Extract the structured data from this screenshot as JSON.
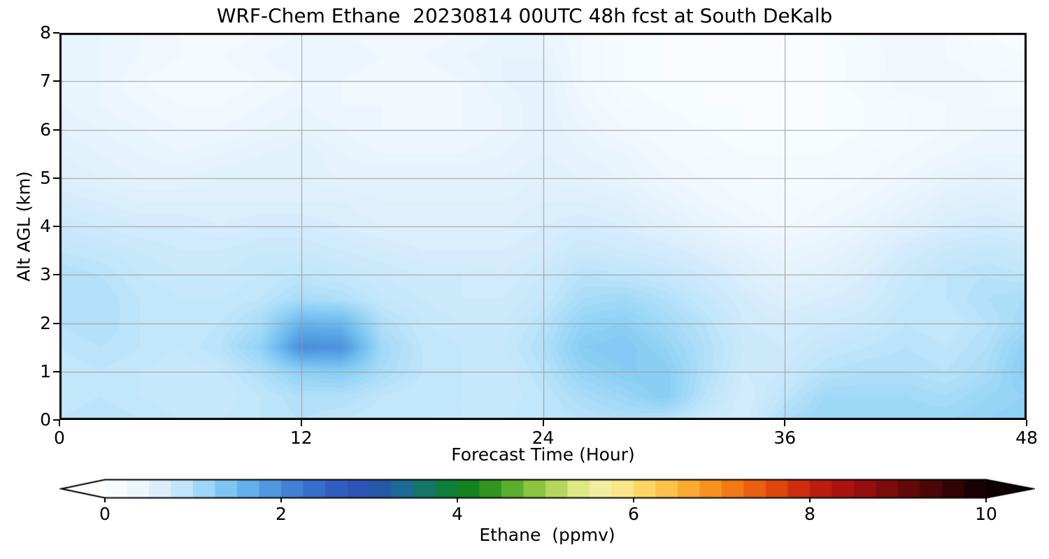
{
  "chart_data": {
    "type": "heatmap",
    "title": "WRF-Chem Ethane  20230814 00UTC 48h fcst at South DeKalb",
    "xlabel": "Forecast Time (Hour)",
    "ylabel": "Alt AGL (km)",
    "xlim": [
      0,
      48
    ],
    "ylim": [
      0,
      8
    ],
    "xticks": [
      0,
      12,
      24,
      36,
      48
    ],
    "yticks": [
      0,
      1,
      2,
      3,
      4,
      5,
      6,
      7,
      8
    ],
    "grid": true,
    "grid_color": "#9c9c9c",
    "contour_interval": 0.05,
    "x_hours": [
      0,
      2,
      4,
      6,
      8,
      10,
      12,
      14,
      16,
      18,
      20,
      22,
      24,
      26,
      28,
      30,
      32,
      34,
      36,
      38,
      40,
      42,
      44,
      46,
      48
    ],
    "y_km": [
      0,
      0.5,
      1,
      1.5,
      2,
      2.5,
      3,
      3.5,
      4,
      4.5,
      5,
      5.5,
      6,
      6.5,
      7,
      7.5,
      8
    ],
    "values_ppmv": [
      [
        0.9,
        0.95,
        0.9,
        0.85,
        0.85,
        0.9,
        0.95,
        0.9,
        0.85,
        0.85,
        0.85,
        0.85,
        0.9,
        0.95,
        1.0,
        0.95,
        0.8,
        0.7,
        1.05,
        1.15,
        1.15,
        1.15,
        1.15,
        1.2,
        1.25
      ],
      [
        0.85,
        0.9,
        0.85,
        0.8,
        0.8,
        0.9,
        1.0,
        1.0,
        0.9,
        0.85,
        0.85,
        0.8,
        0.9,
        1.05,
        1.15,
        1.3,
        0.95,
        0.7,
        0.9,
        1.1,
        1.1,
        1.1,
        1.05,
        1.15,
        1.2
      ],
      [
        0.85,
        0.9,
        0.85,
        0.8,
        0.85,
        1.0,
        1.25,
        1.3,
        1.05,
        0.9,
        0.85,
        0.8,
        0.95,
        1.2,
        1.3,
        1.3,
        1.0,
        0.75,
        0.8,
        0.95,
        1.0,
        1.0,
        0.95,
        1.05,
        1.3
      ],
      [
        0.9,
        0.95,
        0.9,
        0.85,
        0.95,
        1.2,
        2.0,
        1.95,
        1.1,
        0.9,
        0.85,
        0.85,
        1.0,
        1.3,
        1.35,
        1.2,
        1.0,
        0.8,
        0.75,
        0.85,
        0.9,
        0.95,
        0.9,
        1.0,
        1.25
      ],
      [
        0.95,
        1.0,
        0.9,
        0.85,
        0.9,
        1.05,
        1.6,
        1.55,
        1.0,
        0.85,
        0.8,
        0.8,
        0.95,
        1.2,
        1.25,
        1.1,
        0.95,
        0.75,
        0.7,
        0.75,
        0.8,
        0.9,
        0.85,
        0.95,
        1.1
      ],
      [
        1.0,
        1.0,
        0.9,
        0.85,
        0.85,
        0.9,
        1.05,
        1.0,
        0.85,
        0.8,
        0.75,
        0.75,
        0.85,
        1.05,
        1.1,
        1.0,
        0.85,
        0.7,
        0.6,
        0.65,
        0.7,
        0.85,
        0.9,
        1.0,
        1.05
      ],
      [
        1.0,
        0.95,
        0.85,
        0.8,
        0.8,
        0.85,
        0.9,
        0.85,
        0.8,
        0.75,
        0.75,
        0.7,
        0.8,
        0.95,
        0.9,
        0.85,
        0.75,
        0.6,
        0.5,
        0.55,
        0.65,
        0.8,
        0.9,
        0.95,
        0.9
      ],
      [
        0.9,
        0.85,
        0.8,
        0.75,
        0.75,
        0.8,
        0.8,
        0.75,
        0.7,
        0.65,
        0.65,
        0.65,
        0.7,
        0.8,
        0.75,
        0.7,
        0.6,
        0.5,
        0.4,
        0.45,
        0.55,
        0.7,
        0.8,
        0.85,
        0.8
      ],
      [
        0.8,
        0.75,
        0.7,
        0.7,
        0.65,
        0.7,
        0.7,
        0.65,
        0.6,
        0.6,
        0.6,
        0.6,
        0.65,
        0.7,
        0.65,
        0.55,
        0.45,
        0.35,
        0.3,
        0.35,
        0.45,
        0.55,
        0.65,
        0.7,
        0.65
      ],
      [
        0.7,
        0.65,
        0.6,
        0.6,
        0.6,
        0.6,
        0.6,
        0.6,
        0.55,
        0.55,
        0.55,
        0.55,
        0.6,
        0.6,
        0.55,
        0.45,
        0.35,
        0.3,
        0.25,
        0.3,
        0.35,
        0.45,
        0.55,
        0.6,
        0.55
      ],
      [
        0.6,
        0.55,
        0.5,
        0.5,
        0.55,
        0.55,
        0.55,
        0.5,
        0.5,
        0.5,
        0.5,
        0.5,
        0.55,
        0.5,
        0.45,
        0.35,
        0.3,
        0.25,
        0.2,
        0.25,
        0.3,
        0.35,
        0.45,
        0.5,
        0.45
      ],
      [
        0.55,
        0.5,
        0.45,
        0.4,
        0.45,
        0.5,
        0.55,
        0.45,
        0.4,
        0.4,
        0.4,
        0.45,
        0.5,
        0.45,
        0.4,
        0.3,
        0.25,
        0.2,
        0.2,
        0.2,
        0.25,
        0.3,
        0.35,
        0.4,
        0.4
      ],
      [
        0.5,
        0.45,
        0.4,
        0.35,
        0.35,
        0.4,
        0.45,
        0.4,
        0.35,
        0.35,
        0.35,
        0.4,
        0.5,
        0.4,
        0.3,
        0.25,
        0.2,
        0.15,
        0.15,
        0.15,
        0.2,
        0.25,
        0.3,
        0.35,
        0.35
      ],
      [
        0.45,
        0.4,
        0.35,
        0.3,
        0.3,
        0.35,
        0.4,
        0.35,
        0.35,
        0.3,
        0.35,
        0.4,
        0.5,
        0.35,
        0.25,
        0.2,
        0.15,
        0.15,
        0.1,
        0.15,
        0.2,
        0.25,
        0.3,
        0.3,
        0.3
      ],
      [
        0.4,
        0.4,
        0.3,
        0.25,
        0.25,
        0.3,
        0.35,
        0.35,
        0.3,
        0.3,
        0.35,
        0.45,
        0.5,
        0.3,
        0.2,
        0.15,
        0.15,
        0.1,
        0.1,
        0.15,
        0.25,
        0.35,
        0.35,
        0.3,
        0.25
      ],
      [
        0.45,
        0.4,
        0.35,
        0.3,
        0.3,
        0.35,
        0.4,
        0.4,
        0.35,
        0.35,
        0.4,
        0.45,
        0.45,
        0.3,
        0.2,
        0.15,
        0.1,
        0.1,
        0.1,
        0.15,
        0.25,
        0.35,
        0.3,
        0.25,
        0.2
      ],
      [
        0.45,
        0.4,
        0.35,
        0.3,
        0.25,
        0.3,
        0.35,
        0.35,
        0.3,
        0.3,
        0.35,
        0.4,
        0.4,
        0.3,
        0.2,
        0.15,
        0.1,
        0.1,
        0.1,
        0.15,
        0.3,
        0.35,
        0.3,
        0.2,
        0.15
      ]
    ],
    "colorbar": {
      "label": "Ethane  (ppmv)",
      "ticks": [
        0,
        2,
        4,
        6,
        8,
        10
      ],
      "range": [
        0,
        10
      ],
      "extend": "both",
      "segment_step": 0.25,
      "colormap_stops": [
        [
          0.0,
          "#ffffff"
        ],
        [
          0.3,
          "#f2f9fe"
        ],
        [
          0.6,
          "#ddeffc"
        ],
        [
          0.9,
          "#bfe5fa"
        ],
        [
          1.2,
          "#93d3f6"
        ],
        [
          1.5,
          "#70bdf0"
        ],
        [
          1.8,
          "#55a0e4"
        ],
        [
          2.1,
          "#4583d6"
        ],
        [
          2.5,
          "#3263c6"
        ],
        [
          3.0,
          "#2b51b0"
        ],
        [
          3.4,
          "#1d6c96"
        ],
        [
          3.8,
          "#0f7d45"
        ],
        [
          4.2,
          "#168416"
        ],
        [
          4.6,
          "#57ad2e"
        ],
        [
          5.0,
          "#a3cf4a"
        ],
        [
          5.4,
          "#e2eb87"
        ],
        [
          5.7,
          "#f8f0a8"
        ],
        [
          6.0,
          "#fcdf72"
        ],
        [
          6.4,
          "#fcc148"
        ],
        [
          6.8,
          "#f99a22"
        ],
        [
          7.2,
          "#f07312"
        ],
        [
          7.6,
          "#e0490f"
        ],
        [
          8.0,
          "#c6200e"
        ],
        [
          8.5,
          "#a01110"
        ],
        [
          9.0,
          "#700b0b"
        ],
        [
          9.5,
          "#3f0606"
        ],
        [
          10.0,
          "#100101"
        ]
      ]
    }
  }
}
